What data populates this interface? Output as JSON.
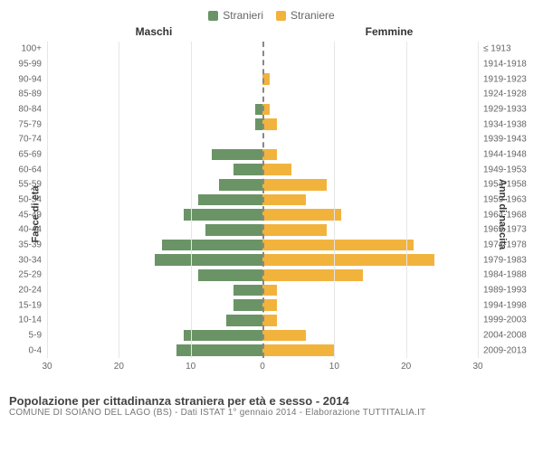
{
  "legend": {
    "male": {
      "label": "Stranieri",
      "color": "#6b9466"
    },
    "female": {
      "label": "Straniere",
      "color": "#f2b33d"
    }
  },
  "gender_headers": {
    "left": "Maschi",
    "right": "Femmine"
  },
  "axis_titles": {
    "left": "Fasce di età",
    "right": "Anni di nascita"
  },
  "chart": {
    "type": "population-pyramid",
    "axis_max": 30,
    "xticks_left": [
      30,
      20,
      10,
      0
    ],
    "xticks_right": [
      10,
      20,
      30
    ],
    "grid_color": "#e6e6e6",
    "center_color": "#888888",
    "background_color": "#ffffff",
    "label_fontsize": 10,
    "bar_relative_height": 0.76,
    "rows": [
      {
        "age": "100+",
        "birth": "≤ 1913",
        "m": 0,
        "f": 0
      },
      {
        "age": "95-99",
        "birth": "1914-1918",
        "m": 0,
        "f": 0
      },
      {
        "age": "90-94",
        "birth": "1919-1923",
        "m": 0,
        "f": 1
      },
      {
        "age": "85-89",
        "birth": "1924-1928",
        "m": 0,
        "f": 0
      },
      {
        "age": "80-84",
        "birth": "1929-1933",
        "m": 1,
        "f": 1
      },
      {
        "age": "75-79",
        "birth": "1934-1938",
        "m": 1,
        "f": 2
      },
      {
        "age": "70-74",
        "birth": "1939-1943",
        "m": 0,
        "f": 0
      },
      {
        "age": "65-69",
        "birth": "1944-1948",
        "m": 7,
        "f": 2
      },
      {
        "age": "60-64",
        "birth": "1949-1953",
        "m": 4,
        "f": 4
      },
      {
        "age": "55-59",
        "birth": "1954-1958",
        "m": 6,
        "f": 9
      },
      {
        "age": "50-54",
        "birth": "1959-1963",
        "m": 9,
        "f": 6
      },
      {
        "age": "45-49",
        "birth": "1964-1968",
        "m": 11,
        "f": 11
      },
      {
        "age": "40-44",
        "birth": "1969-1973",
        "m": 8,
        "f": 9
      },
      {
        "age": "35-39",
        "birth": "1974-1978",
        "m": 14,
        "f": 21
      },
      {
        "age": "30-34",
        "birth": "1979-1983",
        "m": 15,
        "f": 24
      },
      {
        "age": "25-29",
        "birth": "1984-1988",
        "m": 9,
        "f": 14
      },
      {
        "age": "20-24",
        "birth": "1989-1993",
        "m": 4,
        "f": 2
      },
      {
        "age": "15-19",
        "birth": "1994-1998",
        "m": 4,
        "f": 2
      },
      {
        "age": "10-14",
        "birth": "1999-2003",
        "m": 5,
        "f": 2
      },
      {
        "age": "5-9",
        "birth": "2004-2008",
        "m": 11,
        "f": 6
      },
      {
        "age": "0-4",
        "birth": "2009-2013",
        "m": 12,
        "f": 10
      }
    ]
  },
  "footer": {
    "title": "Popolazione per cittadinanza straniera per età e sesso - 2014",
    "subtitle": "COMUNE DI SOIANO DEL LAGO (BS) - Dati ISTAT 1° gennaio 2014 - Elaborazione TUTTITALIA.IT"
  }
}
